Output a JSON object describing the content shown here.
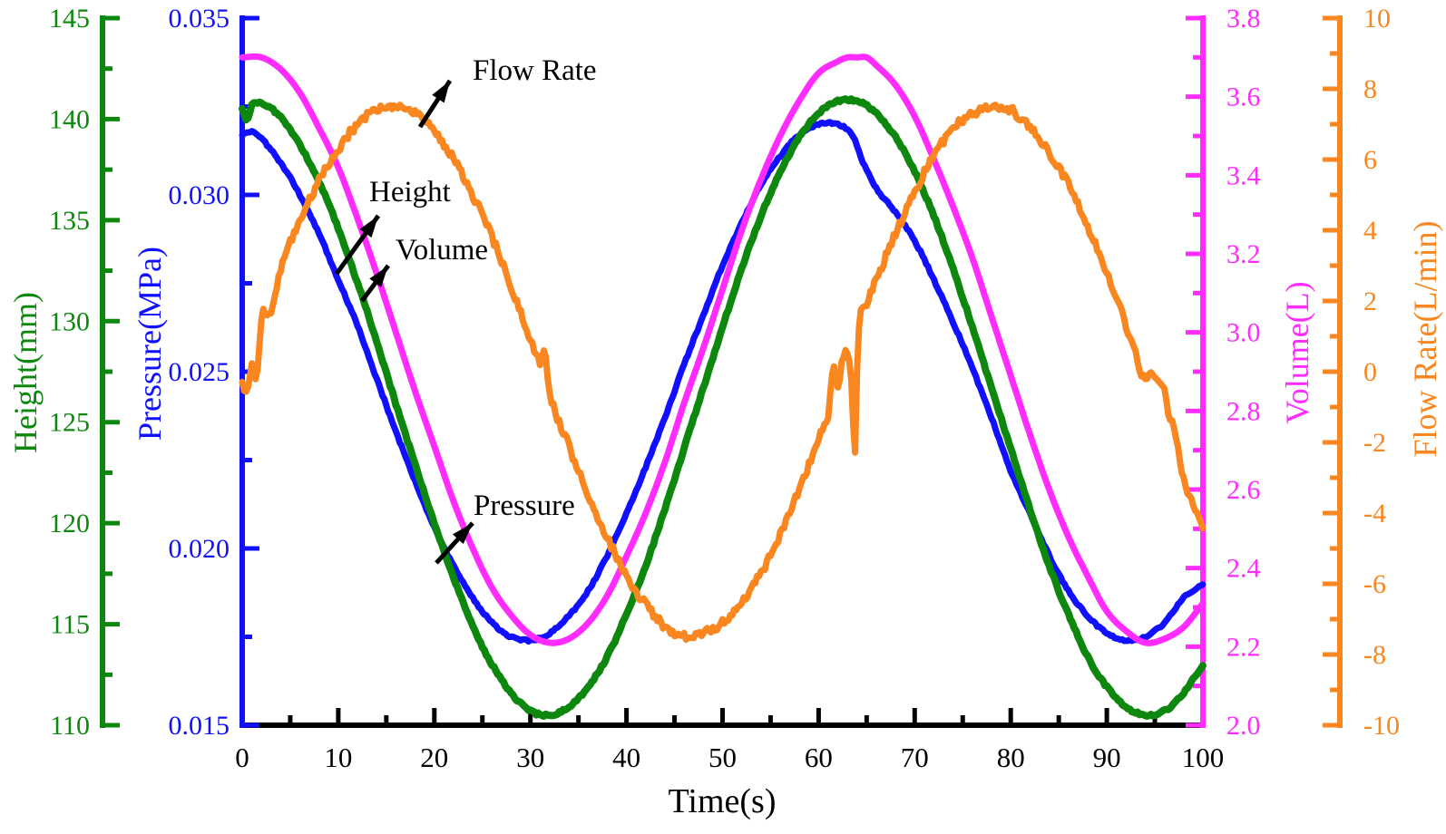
{
  "chart_data": {
    "type": "line",
    "title": "",
    "grid": false,
    "legend": "none, labels annotated inside plot with arrows",
    "x_axis": {
      "label": "Time(s)",
      "range": [
        0,
        100
      ],
      "major_tick_step": 10,
      "minor_tick_step": 5,
      "tick_labels": [
        "0",
        "10",
        "20",
        "30",
        "40",
        "50",
        "60",
        "70",
        "80",
        "90",
        "100"
      ],
      "color": "#000000"
    },
    "y_axes": [
      {
        "id": "height",
        "label": "Height(mm)",
        "range": [
          110,
          145
        ],
        "major_tick_step": 5,
        "minor_tick_step": 2.5,
        "tick_labels": [
          "145",
          "140",
          "135",
          "130",
          "125",
          "120",
          "115",
          "110"
        ],
        "color": "#0D870D",
        "side": "left-outer"
      },
      {
        "id": "pressure",
        "label": "Pressure(MPa)",
        "range": [
          0.015,
          0.035
        ],
        "major_tick_step": 0.005,
        "minor_tick_step": 0.0025,
        "tick_labels": [
          "0.035",
          "0.030",
          "0.025",
          "0.020",
          "0.015"
        ],
        "color": "#1010FF",
        "side": "left"
      },
      {
        "id": "volume",
        "label": "Volume(L)",
        "range": [
          2.0,
          3.8
        ],
        "major_tick_step": 0.2,
        "minor_tick_step": 0.1,
        "tick_labels": [
          "3.8",
          "3.6",
          "3.4",
          "3.2",
          "3.0",
          "2.8",
          "2.6",
          "2.4",
          "2.2",
          "2.0"
        ],
        "color": "#FF2BFF",
        "side": "right"
      },
      {
        "id": "flow",
        "label": "Flow Rate(L/min)",
        "range": [
          -10,
          10
        ],
        "major_tick_step": 2,
        "minor_tick_step": 1,
        "tick_labels": [
          "10",
          "8",
          "6",
          "4",
          "2",
          "0",
          "-2",
          "-4",
          "-6",
          "-8",
          "-10"
        ],
        "color": "#F9861E",
        "side": "right-outer"
      }
    ],
    "series": [
      {
        "name": "Pressure",
        "axis": "pressure",
        "color": "#1010FF",
        "unit": "MPa",
        "points": [
          [
            0,
            0.0317
          ],
          [
            1,
            0.0318
          ],
          [
            2,
            0.0316
          ],
          [
            4,
            0.0309
          ],
          [
            6,
            0.03
          ],
          [
            8,
            0.0289
          ],
          [
            10,
            0.0276
          ],
          [
            12,
            0.0263
          ],
          [
            14,
            0.0248
          ],
          [
            16,
            0.0233
          ],
          [
            18,
            0.0219
          ],
          [
            20,
            0.0206
          ],
          [
            22,
            0.0195
          ],
          [
            24,
            0.0186
          ],
          [
            26,
            0.0179
          ],
          [
            28,
            0.0175
          ],
          [
            30,
            0.0174
          ],
          [
            32,
            0.0176
          ],
          [
            34,
            0.0181
          ],
          [
            36,
            0.0188
          ],
          [
            38,
            0.0198
          ],
          [
            40,
            0.021
          ],
          [
            42,
            0.0223
          ],
          [
            44,
            0.0237
          ],
          [
            46,
            0.0252
          ],
          [
            48,
            0.0266
          ],
          [
            50,
            0.028
          ],
          [
            52,
            0.0292
          ],
          [
            54,
            0.0303
          ],
          [
            56,
            0.0311
          ],
          [
            58,
            0.0317
          ],
          [
            60,
            0.032
          ],
          [
            62,
            0.032
          ],
          [
            63.5,
            0.0317
          ],
          [
            64.5,
            0.031
          ],
          [
            66,
            0.0302
          ],
          [
            68,
            0.0295
          ],
          [
            70,
            0.0287
          ],
          [
            72,
            0.0276
          ],
          [
            74,
            0.0264
          ],
          [
            76,
            0.0251
          ],
          [
            78,
            0.0237
          ],
          [
            80,
            0.0222
          ],
          [
            82,
            0.021
          ],
          [
            84,
            0.0198
          ],
          [
            86,
            0.0188
          ],
          [
            88,
            0.0181
          ],
          [
            90,
            0.0176
          ],
          [
            92,
            0.0174
          ],
          [
            94,
            0.0175
          ],
          [
            96,
            0.0179
          ],
          [
            98,
            0.0186
          ],
          [
            100,
            0.019
          ]
        ]
      },
      {
        "name": "Height",
        "axis": "height",
        "color": "#0D870D",
        "unit": "mm",
        "points": [
          [
            0,
            140.5
          ],
          [
            0.5,
            139.9
          ],
          [
            1,
            140.7
          ],
          [
            2,
            140.8
          ],
          [
            4,
            140.1
          ],
          [
            6,
            138.7
          ],
          [
            8,
            136.9
          ],
          [
            10,
            134.6
          ],
          [
            12,
            131.9
          ],
          [
            14,
            129.0
          ],
          [
            16,
            125.9
          ],
          [
            18,
            122.9
          ],
          [
            20,
            120.0
          ],
          [
            22,
            117.3
          ],
          [
            24,
            114.9
          ],
          [
            26,
            113.0
          ],
          [
            28,
            111.6
          ],
          [
            30,
            110.7
          ],
          [
            32,
            110.5
          ],
          [
            34,
            110.9
          ],
          [
            36,
            111.9
          ],
          [
            38,
            113.4
          ],
          [
            40,
            115.5
          ],
          [
            42,
            117.9
          ],
          [
            44,
            120.7
          ],
          [
            46,
            123.7
          ],
          [
            48,
            126.7
          ],
          [
            50,
            129.7
          ],
          [
            52,
            132.6
          ],
          [
            54,
            135.2
          ],
          [
            56,
            137.4
          ],
          [
            58,
            139.1
          ],
          [
            60,
            140.3
          ],
          [
            62,
            140.9
          ],
          [
            64,
            140.9
          ],
          [
            66,
            140.3
          ],
          [
            68,
            139.1
          ],
          [
            70,
            137.4
          ],
          [
            72,
            135.2
          ],
          [
            74,
            132.6
          ],
          [
            76,
            129.7
          ],
          [
            78,
            126.7
          ],
          [
            80,
            123.7
          ],
          [
            82,
            120.7
          ],
          [
            84,
            117.9
          ],
          [
            86,
            115.5
          ],
          [
            88,
            113.4
          ],
          [
            90,
            111.9
          ],
          [
            92,
            110.9
          ],
          [
            94,
            110.5
          ],
          [
            96,
            110.7
          ],
          [
            98,
            111.6
          ],
          [
            100,
            113.0
          ]
        ]
      },
      {
        "name": "Volume",
        "axis": "volume",
        "color": "#FF2BFF",
        "unit": "L",
        "points": [
          [
            0,
            3.7
          ],
          [
            2,
            3.7
          ],
          [
            4,
            3.67
          ],
          [
            6,
            3.61
          ],
          [
            8,
            3.52
          ],
          [
            10,
            3.42
          ],
          [
            12,
            3.29
          ],
          [
            14,
            3.15
          ],
          [
            16,
            3.0
          ],
          [
            18,
            2.85
          ],
          [
            20,
            2.71
          ],
          [
            22,
            2.57
          ],
          [
            24,
            2.45
          ],
          [
            26,
            2.35
          ],
          [
            28,
            2.28
          ],
          [
            30,
            2.23
          ],
          [
            32,
            2.21
          ],
          [
            34,
            2.22
          ],
          [
            36,
            2.26
          ],
          [
            38,
            2.33
          ],
          [
            40,
            2.43
          ],
          [
            42,
            2.54
          ],
          [
            44,
            2.67
          ],
          [
            46,
            2.82
          ],
          [
            48,
            2.96
          ],
          [
            50,
            3.11
          ],
          [
            52,
            3.26
          ],
          [
            54,
            3.39
          ],
          [
            56,
            3.5
          ],
          [
            58,
            3.59
          ],
          [
            60,
            3.66
          ],
          [
            62,
            3.69
          ],
          [
            63,
            3.7
          ],
          [
            64,
            3.7
          ],
          [
            65,
            3.7
          ],
          [
            66,
            3.68
          ],
          [
            68,
            3.63
          ],
          [
            70,
            3.55
          ],
          [
            72,
            3.44
          ],
          [
            74,
            3.32
          ],
          [
            76,
            3.19
          ],
          [
            78,
            3.04
          ],
          [
            80,
            2.89
          ],
          [
            82,
            2.74
          ],
          [
            84,
            2.6
          ],
          [
            86,
            2.48
          ],
          [
            88,
            2.38
          ],
          [
            90,
            2.29
          ],
          [
            92,
            2.24
          ],
          [
            94,
            2.21
          ],
          [
            96,
            2.22
          ],
          [
            98,
            2.25
          ],
          [
            100,
            2.31
          ]
        ]
      },
      {
        "name": "Flow Rate",
        "axis": "flow",
        "color": "#F9861E",
        "unit": "L/min",
        "points": [
          [
            0,
            -0.3
          ],
          [
            0.5,
            -0.6
          ],
          [
            1,
            0.2
          ],
          [
            1.5,
            -0.3
          ],
          [
            2,
            1.5
          ],
          [
            3,
            1.7
          ],
          [
            4,
            2.9
          ],
          [
            6,
            4.3
          ],
          [
            8,
            5.4
          ],
          [
            10,
            6.3
          ],
          [
            12,
            7.0
          ],
          [
            14,
            7.4
          ],
          [
            16,
            7.5
          ],
          [
            18,
            7.3
          ],
          [
            20,
            6.8
          ],
          [
            22,
            6.0
          ],
          [
            24,
            5.0
          ],
          [
            26,
            3.8
          ],
          [
            28,
            2.4
          ],
          [
            30,
            0.9
          ],
          [
            31,
            0.3
          ],
          [
            31.5,
            0.6
          ],
          [
            32,
            -0.6
          ],
          [
            34,
            -2.1
          ],
          [
            36,
            -3.5
          ],
          [
            38,
            -4.7
          ],
          [
            40,
            -5.8
          ],
          [
            42,
            -6.6
          ],
          [
            44,
            -7.2
          ],
          [
            46,
            -7.5
          ],
          [
            48,
            -7.4
          ],
          [
            50,
            -7.1
          ],
          [
            52,
            -6.5
          ],
          [
            54,
            -5.7
          ],
          [
            56,
            -4.6
          ],
          [
            58,
            -3.3
          ],
          [
            60,
            -1.9
          ],
          [
            61,
            -1.2
          ],
          [
            61.5,
            0.1
          ],
          [
            62,
            -0.4
          ],
          [
            62.5,
            0.4
          ],
          [
            63,
            0.6
          ],
          [
            63.4,
            -0.3
          ],
          [
            63.8,
            -2.3
          ],
          [
            64.1,
            1.0
          ],
          [
            65,
            1.9
          ],
          [
            66,
            2.6
          ],
          [
            68,
            3.9
          ],
          [
            70,
            5.1
          ],
          [
            72,
            6.1
          ],
          [
            74,
            6.9
          ],
          [
            76,
            7.3
          ],
          [
            78,
            7.5
          ],
          [
            80,
            7.4
          ],
          [
            82,
            6.9
          ],
          [
            84,
            6.2
          ],
          [
            86,
            5.3
          ],
          [
            88,
            4.1
          ],
          [
            90,
            2.8
          ],
          [
            92,
            1.3
          ],
          [
            93,
            0.5
          ],
          [
            93.5,
            0.0
          ],
          [
            94,
            -0.2
          ],
          [
            95,
            -0.1
          ],
          [
            96,
            -0.5
          ],
          [
            96.5,
            -1.3
          ],
          [
            97,
            -1.6
          ],
          [
            98,
            -3.1
          ],
          [
            99,
            -3.8
          ],
          [
            100,
            -4.4
          ]
        ]
      }
    ],
    "annotations": [
      {
        "id": "flow-rate",
        "text": "Flow Rate"
      },
      {
        "id": "height",
        "text": "Height"
      },
      {
        "id": "volume",
        "text": "Volume"
      },
      {
        "id": "pressure",
        "text": "Pressure"
      }
    ]
  }
}
